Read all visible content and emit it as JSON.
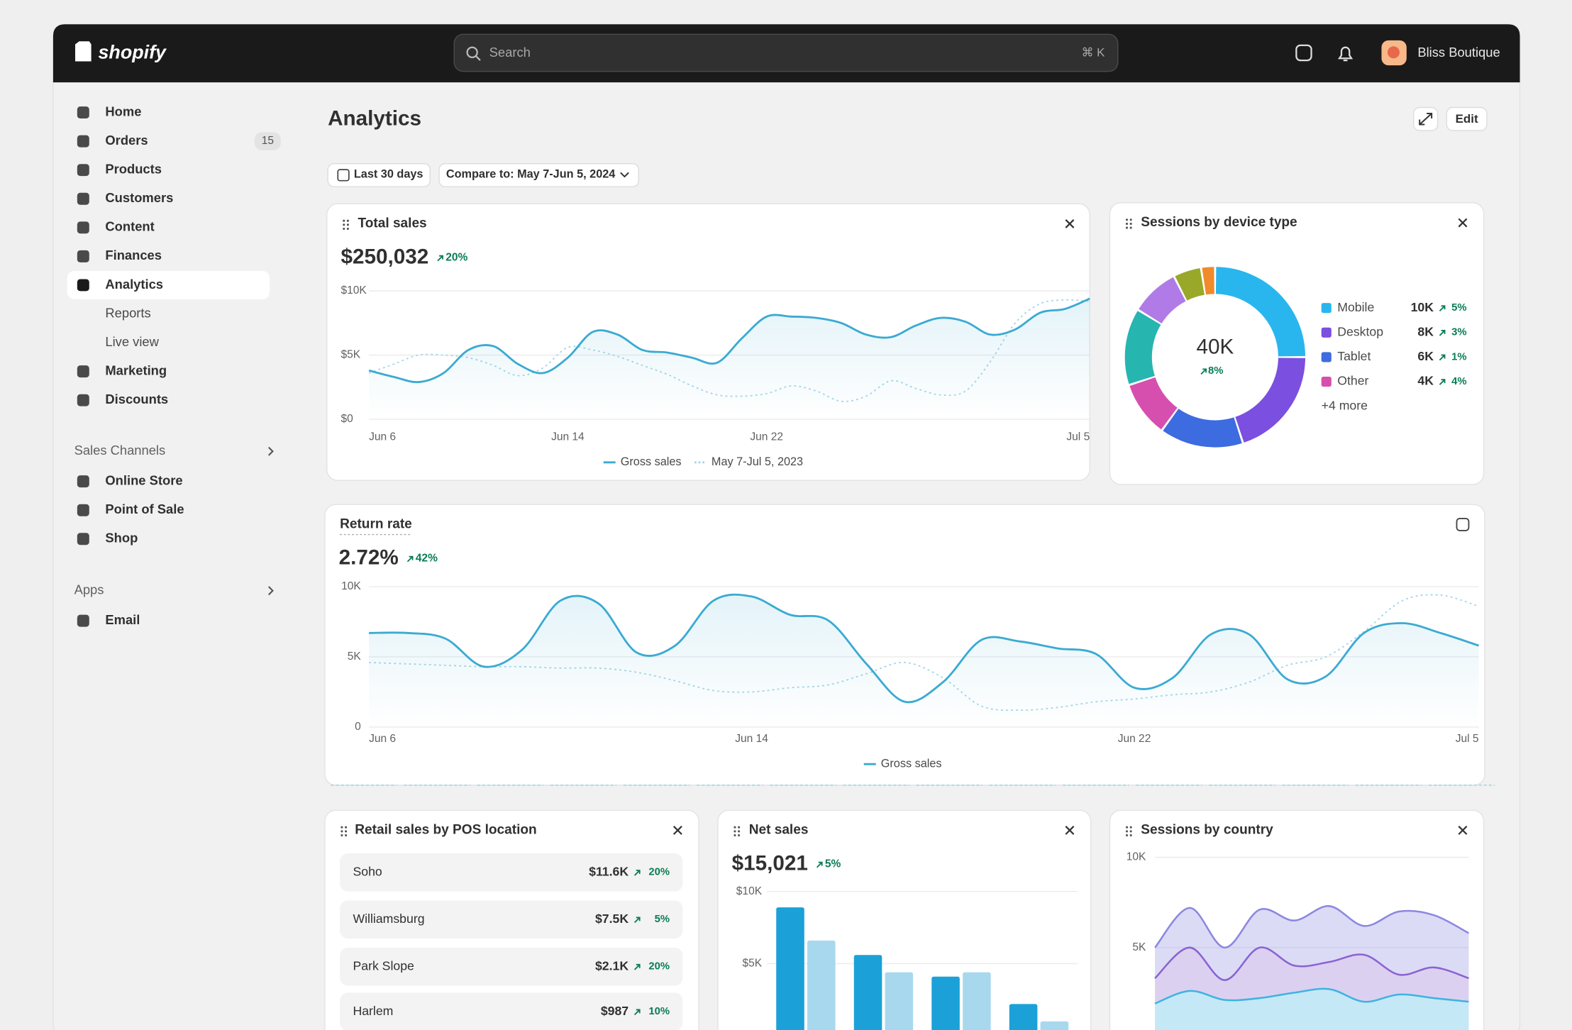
{
  "topbar": {
    "logo": "shopify",
    "search": "Search",
    "shortcut": "⌘ K",
    "store": "Bliss Boutique"
  },
  "nav": {
    "items": [
      {
        "label": "Home"
      },
      {
        "label": "Orders",
        "badge": "15"
      },
      {
        "label": "Products"
      },
      {
        "label": "Customers"
      },
      {
        "label": "Content"
      },
      {
        "label": "Finances"
      },
      {
        "label": "Analytics",
        "active": true,
        "children": [
          "Reports",
          "Live view"
        ]
      },
      {
        "label": "Marketing"
      },
      {
        "label": "Discounts"
      }
    ],
    "sales_channels": {
      "title": "Sales Channels",
      "items": [
        "Online Store",
        "Point of Sale",
        "Shop"
      ]
    },
    "apps": {
      "title": "Apps",
      "items": [
        "Email"
      ]
    }
  },
  "page": {
    "title": "Analytics",
    "edit": "Edit",
    "date_range": "Last 30 days",
    "compare": "Compare to: May 7-Jun 5, 2024"
  },
  "pos_table": {
    "title": "Retail sales by POS location",
    "rows": [
      [
        "Soho",
        "$11.6K",
        "20%"
      ],
      [
        "Williamsburg",
        "$7.5K",
        "5%"
      ],
      [
        "Park Slope",
        "$2.1K",
        "20%"
      ],
      [
        "Harlem",
        "$987",
        "10%"
      ]
    ]
  },
  "chart_data": [
    {
      "type": "line",
      "title": "Total sales",
      "headline": "$250,032",
      "change": "20%",
      "categories": [
        "Jun 6",
        null,
        null,
        null,
        null,
        null,
        null,
        null,
        "Jun 14",
        null,
        null,
        null,
        null,
        null,
        null,
        null,
        "Jun 22",
        null,
        null,
        null,
        null,
        null,
        null,
        null,
        null,
        null,
        null,
        null,
        null,
        "Jul 5"
      ],
      "series": [
        {
          "name": "Gross sales",
          "color": "#3aaad2",
          "values": [
            3800,
            3300,
            2900,
            3600,
            5400,
            5700,
            4300,
            3600,
            4800,
            6800,
            6600,
            5400,
            5200,
            4800,
            4400,
            6300,
            8000,
            8000,
            7900,
            7500,
            6600,
            6400,
            7300,
            7900,
            7600,
            6600,
            7000,
            8300,
            8600,
            9400
          ]
        },
        {
          "name": "May 7-Jul 5, 2023",
          "color": "#a5d6e8",
          "dashed": true,
          "values": [
            3600,
            4300,
            5000,
            5000,
            4800,
            4200,
            3400,
            4000,
            5600,
            5400,
            4900,
            4200,
            3500,
            2600,
            1900,
            1800,
            2000,
            2600,
            2200,
            1400,
            1800,
            3000,
            2400,
            1900,
            2200,
            4500,
            7500,
            9000,
            9300,
            9200
          ]
        }
      ],
      "ylim": [
        0,
        10000
      ],
      "yticks": [
        {
          "value": 0,
          "label": "$0"
        },
        {
          "value": 5000,
          "label": "$5K"
        },
        {
          "value": 10000,
          "label": "$10K"
        }
      ],
      "grid": true
    },
    {
      "type": "donut",
      "title": "Sessions by device type",
      "total": {
        "value": 40000,
        "label": "40K"
      },
      "change": "8%",
      "series": [
        {
          "name": "Mobile",
          "color": "#29b6ee",
          "value": 10000,
          "value_label": "10K",
          "change": "5%"
        },
        {
          "name": "Desktop",
          "color": "#7b4fe0",
          "value": 8000,
          "value_label": "8K",
          "change": "3%"
        },
        {
          "name": "Tablet",
          "color": "#3d6be0",
          "value": 6000,
          "value_label": "6K",
          "change": "1%"
        },
        {
          "name": "Other",
          "color": "#d64fae",
          "value": 4000,
          "value_label": "4K",
          "change": "4%"
        }
      ],
      "more_label": "+4 more",
      "more": [
        {
          "color": "#27b5b0",
          "value": 5500
        },
        {
          "color": "#b07be6",
          "value": 3500
        },
        {
          "color": "#9aa82a",
          "value": 2000
        },
        {
          "color": "#f08a2b",
          "value": 1000
        }
      ]
    },
    {
      "type": "line",
      "title": "Return rate",
      "headline": "2.72%",
      "change": "42%",
      "categories": [
        "Jun 6",
        null,
        null,
        null,
        null,
        null,
        null,
        null,
        null,
        null,
        "Jun 14",
        null,
        null,
        null,
        null,
        null,
        null,
        null,
        null,
        null,
        "Jun 22",
        null,
        null,
        null,
        null,
        null,
        null,
        null,
        null,
        "Jul 5"
      ],
      "series": [
        {
          "name": "Gross sales",
          "color": "#3aaad2",
          "values": [
            6700,
            6700,
            6300,
            4300,
            5500,
            9000,
            8800,
            5300,
            5800,
            9000,
            9300,
            8000,
            7600,
            4500,
            1800,
            3200,
            6200,
            6100,
            5600,
            5200,
            2800,
            3500,
            6600,
            6600,
            3400,
            3600,
            6700,
            7400,
            6700,
            5800
          ]
        },
        {
          "color": "#a5d6e8",
          "dashed": true,
          "values": [
            4600,
            4500,
            4400,
            4300,
            4300,
            4200,
            4200,
            3900,
            3300,
            2600,
            2500,
            2800,
            3000,
            3800,
            4600,
            3500,
            1500,
            1200,
            1400,
            1800,
            2000,
            2300,
            2500,
            3200,
            4400,
            5000,
            6800,
            9000,
            9400,
            8600
          ]
        }
      ],
      "ylim": [
        0,
        10000
      ],
      "yticks": [
        0,
        {
          "value": 5000,
          "label": "5K"
        },
        {
          "value": 10000,
          "label": "10K"
        }
      ],
      "grid": true
    },
    {
      "type": "bar",
      "title": "Net sales",
      "headline": "$15,021",
      "change": "5%",
      "categories": [
        null,
        null,
        null,
        null
      ],
      "series": [
        {
          "color": "#1ba1d8",
          "values": [
            8900,
            5600,
            4100,
            2200
          ]
        },
        {
          "color": "#a8d8ee",
          "values": [
            6600,
            4400,
            4400,
            1000
          ]
        }
      ],
      "ylim": [
        0,
        10000
      ],
      "yticks": [
        {
          "value": 5000,
          "label": "$5K"
        },
        {
          "value": 10000,
          "label": "$10K"
        }
      ],
      "grid": true
    },
    {
      "type": "area",
      "stacked": true,
      "title": "Sessions by country",
      "categories": [
        null,
        null,
        null,
        null,
        null,
        null,
        null,
        null,
        null,
        null
      ],
      "series": [
        {
          "color": "#3fb3e0",
          "values": [
            1900,
            2600,
            2100,
            2200,
            2500,
            2700,
            2000,
            2400,
            2200,
            2000
          ]
        },
        {
          "color": "#8a63d2",
          "values": [
            1400,
            2400,
            1100,
            2800,
            1500,
            1500,
            2600,
            1100,
            1700,
            1300
          ]
        },
        {
          "color": "#8b87e0",
          "values": [
            1700,
            2200,
            1800,
            2100,
            2500,
            3100,
            1600,
            3500,
            2900,
            2500
          ]
        }
      ],
      "ylim": [
        0,
        10000
      ],
      "yticks": [
        {
          "value": 5000,
          "label": "5K"
        },
        {
          "value": 10000,
          "label": "10K"
        }
      ],
      "grid": true
    }
  ]
}
